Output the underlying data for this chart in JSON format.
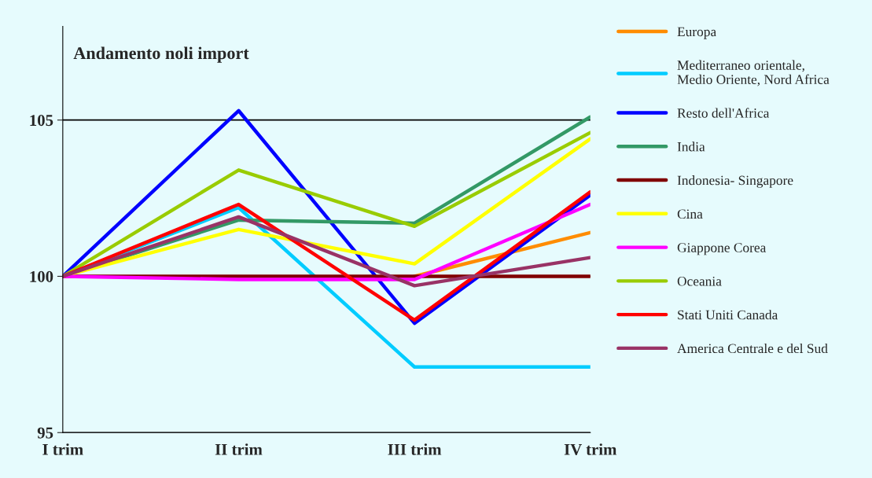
{
  "chart_data": {
    "type": "line",
    "title": "Andamento noli import",
    "categories": [
      "I trim",
      "II trim",
      "III trim",
      "IV trim"
    ],
    "series": [
      {
        "name": "Europa",
        "color": "#ff8c00",
        "values": [
          null,
          null,
          100,
          101.4
        ]
      },
      {
        "name": "Mediterraneo orientale,\nMedio Oriente, Nord Africa",
        "color": "#00ccff",
        "values": [
          100,
          102.2,
          97.1,
          97.1
        ]
      },
      {
        "name": "Resto dell'Africa",
        "color": "#0000ff",
        "values": [
          100,
          105.3,
          98.5,
          102.6
        ]
      },
      {
        "name": "India",
        "color": "#339966",
        "values": [
          100,
          101.8,
          101.7,
          105.1
        ]
      },
      {
        "name": "Indonesia- Singapore",
        "color": "#800000",
        "values": [
          100,
          100,
          100,
          100
        ]
      },
      {
        "name": "Cina",
        "color": "#ffff00",
        "values": [
          100,
          101.5,
          100.4,
          104.4
        ]
      },
      {
        "name": "Giappone Corea",
        "color": "#ff00ff",
        "values": [
          100,
          99.9,
          99.9,
          102.3
        ]
      },
      {
        "name": "Oceania",
        "color": "#99cc00",
        "values": [
          100,
          103.4,
          101.6,
          104.6
        ]
      },
      {
        "name": "Stati Uniti Canada",
        "color": "#ff0000",
        "values": [
          100,
          102.3,
          98.6,
          102.7
        ]
      },
      {
        "name": "America Centrale e del Sud",
        "color": "#993366",
        "values": [
          100,
          101.9,
          99.7,
          100.6
        ]
      }
    ],
    "ylim": [
      95,
      108
    ],
    "yticks": [
      95,
      100,
      105
    ],
    "grid": "y",
    "legend": "right",
    "marker": "none",
    "line_style": "solid"
  }
}
